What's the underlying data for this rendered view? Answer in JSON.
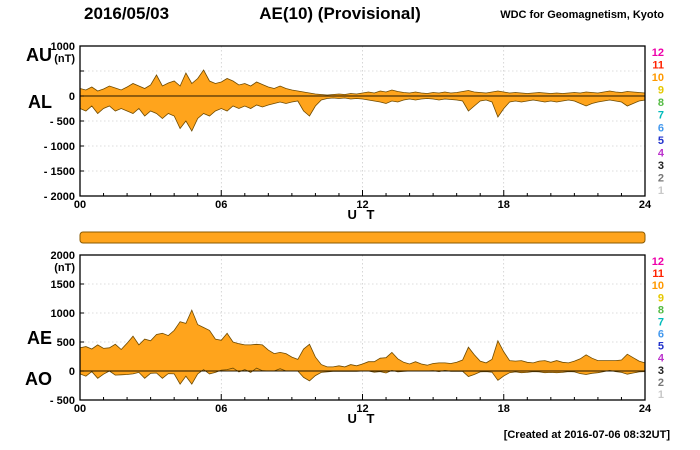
{
  "header": {
    "date": "2016/05/03",
    "title": "AE(10) (Provisional)",
    "source": "WDC for Geomagnetism, Kyoto"
  },
  "footer": {
    "created_note": "[Created at 2016-07-06 08:32UT]"
  },
  "axis": {
    "xlabel": "U T"
  },
  "colors": {
    "trace_fill": "#FFA41C",
    "trace_edge": "#6E4A00",
    "strip_fill": "#FFA41C",
    "strip_edge": "#8A5A00",
    "grid": "#bbbbbb",
    "frame": "#000000",
    "zero_line": "#000000"
  },
  "station_scale": {
    "values": [
      12,
      11,
      10,
      9,
      8,
      7,
      6,
      5,
      4,
      3,
      2,
      1
    ],
    "colors": [
      "#ee00aa",
      "#ff2200",
      "#ff9900",
      "#e6c800",
      "#55bb44",
      "#00bbbb",
      "#4499ee",
      "#2233cc",
      "#bb33cc",
      "#222222",
      "#777777",
      "#c8c8c8"
    ]
  },
  "chart_data": [
    {
      "name": "au-al-panel",
      "type": "area",
      "xlabel": "U T",
      "unit": "(nT)",
      "x_start": 0,
      "x_step": 0.25,
      "x_end": 24,
      "xlim": [
        0,
        24
      ],
      "ylim": [
        -2000,
        1000
      ],
      "grid_y_step": 500,
      "grid_x_major": 6,
      "xticks": [
        {
          "v": 0,
          "label": "00"
        },
        {
          "v": 6,
          "label": "06"
        },
        {
          "v": 12,
          "label": "12"
        },
        {
          "v": 18,
          "label": "18"
        },
        {
          "v": 24,
          "label": "24"
        }
      ],
      "yticks": [
        {
          "v": 1000,
          "label": "1000"
        },
        {
          "v": 0,
          "label": "0"
        },
        {
          "v": -500,
          "label": "- 500"
        },
        {
          "v": -1000,
          "label": "- 1000"
        },
        {
          "v": -1500,
          "label": "- 1500"
        },
        {
          "v": -2000,
          "label": "- 2000"
        }
      ],
      "left_labels": [
        {
          "text": "AU",
          "v": 800
        },
        {
          "text": "AL",
          "v": -150
        }
      ],
      "series": [
        {
          "name": "AU",
          "values": [
            150,
            120,
            180,
            100,
            140,
            200,
            160,
            120,
            180,
            250,
            200,
            150,
            220,
            420,
            200,
            260,
            300,
            200,
            460,
            250,
            350,
            520,
            300,
            250,
            280,
            350,
            300,
            220,
            250,
            200,
            280,
            230,
            180,
            150,
            200,
            150,
            120,
            100,
            80,
            60,
            40,
            30,
            20,
            30,
            40,
            30,
            50,
            40,
            60,
            80,
            60,
            100,
            80,
            120,
            90,
            70,
            60,
            80,
            60,
            50,
            70,
            60,
            80,
            60,
            70,
            90,
            110,
            80,
            70,
            60,
            80,
            100,
            80,
            60,
            70,
            60,
            50,
            60,
            70,
            60,
            50,
            60,
            50,
            60,
            70,
            60,
            80,
            70,
            60,
            80,
            100,
            80,
            70,
            90,
            80,
            70,
            60
          ]
        },
        {
          "name": "AL",
          "values": [
            -250,
            -300,
            -200,
            -350,
            -250,
            -200,
            -300,
            -250,
            -300,
            -350,
            -250,
            -400,
            -300,
            -350,
            -450,
            -350,
            -400,
            -650,
            -500,
            -700,
            -450,
            -350,
            -400,
            -300,
            -250,
            -300,
            -200,
            -250,
            -200,
            -250,
            -180,
            -220,
            -180,
            -150,
            -120,
            -150,
            -120,
            -100,
            -300,
            -400,
            -200,
            -80,
            -50,
            -40,
            -50,
            -40,
            -60,
            -50,
            -60,
            -80,
            -100,
            -120,
            -150,
            -100,
            -120,
            -80,
            -60,
            -80,
            -60,
            -50,
            -60,
            -80,
            -60,
            -70,
            -80,
            -100,
            -300,
            -200,
            -100,
            -80,
            -120,
            -420,
            -250,
            -120,
            -100,
            -120,
            -100,
            -80,
            -100,
            -120,
            -100,
            -120,
            -100,
            -80,
            -100,
            -150,
            -200,
            -150,
            -120,
            -100,
            -80,
            -100,
            -120,
            -200,
            -150,
            -100,
            -80
          ]
        }
      ]
    },
    {
      "name": "station-number-strip",
      "type": "strip",
      "description": "number of stations in operation over 00-24 UT",
      "constant_value": 10,
      "color": "#FFA41C"
    },
    {
      "name": "ae-ao-panel",
      "type": "area",
      "xlabel": "U T",
      "unit": "(nT)",
      "x_start": 0,
      "x_step": 0.25,
      "x_end": 24,
      "xlim": [
        0,
        24
      ],
      "ylim": [
        -500,
        2000
      ],
      "grid_y_step": 500,
      "grid_x_major": 6,
      "xticks": [
        {
          "v": 0,
          "label": "00"
        },
        {
          "v": 6,
          "label": "06"
        },
        {
          "v": 12,
          "label": "12"
        },
        {
          "v": 18,
          "label": "18"
        },
        {
          "v": 24,
          "label": "24"
        }
      ],
      "yticks": [
        {
          "v": 2000,
          "label": "2000"
        },
        {
          "v": 1500,
          "label": "1500"
        },
        {
          "v": 1000,
          "label": "1000"
        },
        {
          "v": 500,
          "label": "500"
        },
        {
          "v": 0,
          "label": "0"
        },
        {
          "v": -500,
          "label": "- 500"
        }
      ],
      "left_labels": [
        {
          "text": "AE",
          "v": 550
        },
        {
          "text": "AO",
          "v": -150
        }
      ],
      "series": [
        {
          "name": "AE",
          "values": [
            400,
            420,
            380,
            450,
            390,
            400,
            460,
            370,
            480,
            600,
            450,
            550,
            520,
            630,
            650,
            610,
            700,
            850,
            820,
            1050,
            800,
            750,
            700,
            550,
            530,
            650,
            500,
            470,
            450,
            450,
            460,
            450,
            360,
            300,
            320,
            300,
            240,
            200,
            380,
            460,
            240,
            110,
            70,
            70,
            90,
            70,
            110,
            90,
            120,
            160,
            160,
            220,
            230,
            320,
            210,
            150,
            120,
            160,
            120,
            100,
            130,
            140,
            140,
            130,
            150,
            190,
            410,
            280,
            170,
            140,
            200,
            520,
            330,
            180,
            170,
            180,
            150,
            140,
            170,
            180,
            150,
            180,
            150,
            140,
            170,
            210,
            280,
            220,
            180,
            180,
            180,
            180,
            190,
            290,
            230,
            170,
            140
          ]
        },
        {
          "name": "AO",
          "values": [
            -50,
            -90,
            -10,
            -125,
            -55,
            0,
            -70,
            -65,
            -60,
            -50,
            -25,
            -125,
            -40,
            -35,
            -125,
            -45,
            -50,
            -225,
            -90,
            -225,
            -50,
            25,
            -50,
            -25,
            15,
            25,
            50,
            -15,
            25,
            -25,
            50,
            5,
            0,
            0,
            40,
            0,
            0,
            0,
            -110,
            -170,
            -80,
            -25,
            -15,
            -5,
            -5,
            -5,
            -5,
            -5,
            0,
            0,
            -20,
            -10,
            -35,
            10,
            -15,
            -5,
            0,
            0,
            0,
            0,
            5,
            -10,
            10,
            -5,
            -5,
            -5,
            -95,
            -60,
            -15,
            -10,
            -20,
            -160,
            -85,
            -30,
            -15,
            -30,
            -25,
            -10,
            -15,
            -30,
            -25,
            -30,
            -25,
            -10,
            -15,
            -45,
            -60,
            -40,
            -30,
            -10,
            10,
            -10,
            -25,
            -55,
            -35,
            -15,
            -10
          ]
        }
      ]
    }
  ]
}
